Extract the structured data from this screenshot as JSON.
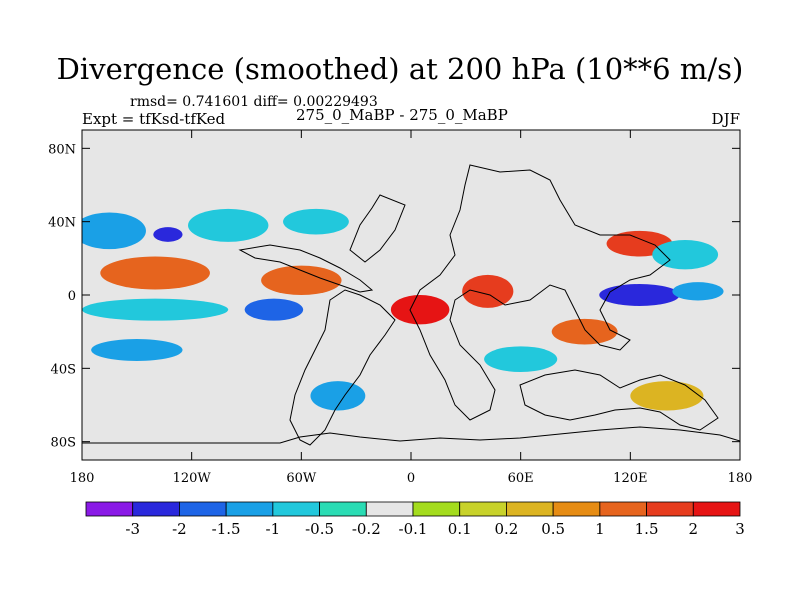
{
  "chart_data": {
    "type": "heatmap",
    "title": "Divergence (smoothed) at 200 hPa (10**6 m/s)",
    "stats": "rmsd= 0.741601 diff= 0.00229493",
    "expt": "Expt = tfKsd-tfKed",
    "subtitle": "275_0_MaBP - 275_0_MaBP",
    "season": "DJF",
    "x_range": [
      -180,
      180
    ],
    "y_range": [
      -90,
      90
    ],
    "x_ticks": [
      {
        "value": -180,
        "label": "180"
      },
      {
        "value": -120,
        "label": "120W"
      },
      {
        "value": -60,
        "label": "60W"
      },
      {
        "value": 0,
        "label": "0"
      },
      {
        "value": 60,
        "label": "60E"
      },
      {
        "value": 120,
        "label": "120E"
      },
      {
        "value": 180,
        "label": "180"
      }
    ],
    "y_ticks": [
      {
        "value": 80,
        "label": "80N"
      },
      {
        "value": 40,
        "label": "40N"
      },
      {
        "value": 0,
        "label": "0"
      },
      {
        "value": -40,
        "label": "40S"
      },
      {
        "value": -80,
        "label": "80S"
      }
    ],
    "colorbar": {
      "levels": [
        "-3",
        "-2",
        "-1.5",
        "-1",
        "-0.5",
        "-0.2",
        "-0.1",
        "0.1",
        "0.2",
        "0.5",
        "1",
        "1.5",
        "2",
        "3"
      ],
      "colors": [
        "#8a1ae6",
        "#2a28dc",
        "#1e64e6",
        "#1aa0e6",
        "#22c8dc",
        "#2adcb4",
        "#e6e6e6",
        "#a4dc1e",
        "#c8d22a",
        "#dcb422",
        "#e68c14",
        "#e6641e",
        "#e63c1e",
        "#e61414"
      ]
    },
    "blobs": [
      {
        "lon": -165,
        "lat": 35,
        "rlon": 20,
        "rlat": 10,
        "level": 3
      },
      {
        "lon": -133,
        "lat": 33,
        "rlon": 8,
        "rlat": 4,
        "level": 1
      },
      {
        "lon": -100,
        "lat": 38,
        "rlon": 22,
        "rlat": 9,
        "level": 4
      },
      {
        "lon": -52,
        "lat": 40,
        "rlon": 18,
        "rlat": 7,
        "level": 4
      },
      {
        "lon": -140,
        "lat": 12,
        "rlon": 30,
        "rlat": 9,
        "level": 11
      },
      {
        "lon": -60,
        "lat": 8,
        "rlon": 22,
        "rlat": 8,
        "level": 11
      },
      {
        "lon": -140,
        "lat": -8,
        "rlon": 40,
        "rlat": 6,
        "level": 4
      },
      {
        "lon": -75,
        "lat": -8,
        "rlon": 16,
        "rlat": 6,
        "level": 2
      },
      {
        "lon": 5,
        "lat": -8,
        "rlon": 16,
        "rlat": 8,
        "level": 13
      },
      {
        "lon": 42,
        "lat": 2,
        "rlon": 14,
        "rlat": 9,
        "level": 12
      },
      {
        "lon": 125,
        "lat": 0,
        "rlon": 22,
        "rlat": 6,
        "level": 1
      },
      {
        "lon": 157,
        "lat": 2,
        "rlon": 14,
        "rlat": 5,
        "level": 3
      },
      {
        "lon": 125,
        "lat": 28,
        "rlon": 18,
        "rlat": 7,
        "level": 12
      },
      {
        "lon": 150,
        "lat": 22,
        "rlon": 18,
        "rlat": 8,
        "level": 4
      },
      {
        "lon": 95,
        "lat": -20,
        "rlon": 18,
        "rlat": 7,
        "level": 11
      },
      {
        "lon": -150,
        "lat": -30,
        "rlon": 25,
        "rlat": 6,
        "level": 3
      },
      {
        "lon": 60,
        "lat": -35,
        "rlon": 20,
        "rlat": 7,
        "level": 4
      },
      {
        "lon": -40,
        "lat": -55,
        "rlon": 15,
        "rlat": 8,
        "level": 3
      },
      {
        "lon": 140,
        "lat": -55,
        "rlon": 20,
        "rlat": 8,
        "level": 9
      }
    ]
  }
}
